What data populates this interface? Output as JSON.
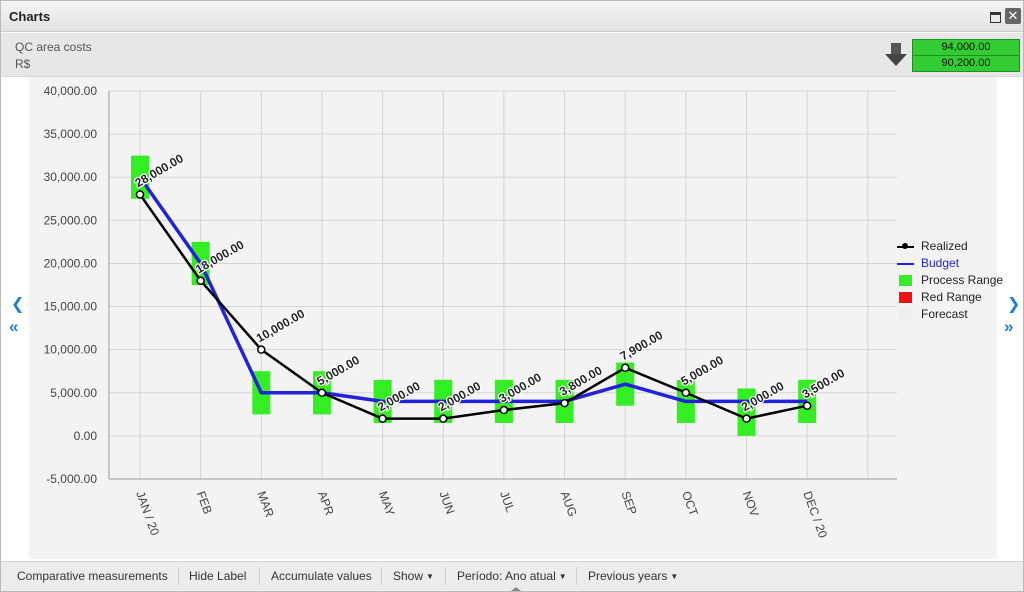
{
  "window": {
    "title": "Charts",
    "close_glyph": "✕"
  },
  "header": {
    "title": "QC area costs",
    "unit": "R$",
    "trend_icon": "arrow-down-icon",
    "values": [
      "94,000.00",
      "90,200.00"
    ],
    "value_color": "#33cc33"
  },
  "nav": {
    "left": "❮",
    "left_fast": "«",
    "right": "❯",
    "right_fast": "»"
  },
  "legend": {
    "realized": "Realized",
    "budget": "Budget",
    "process_range": "Process Range",
    "red_range": "Red Range",
    "forecast": "Forecast"
  },
  "toolbar": {
    "comparative": "Comparative measurements",
    "hide_label": "Hide Label",
    "accumulate": "Accumulate values",
    "show": "Show",
    "periodo": "Período: Ano atual",
    "previous": "Previous years",
    "caret": "▼"
  },
  "chart_data": {
    "type": "line",
    "categories": [
      "JAN / 20",
      "FEB",
      "MAR",
      "APR",
      "MAY",
      "JUN",
      "JUL",
      "AUG",
      "SEP",
      "OCT",
      "NOV",
      "DEC / 20"
    ],
    "ylim": [
      -5000,
      40000
    ],
    "yticks": [
      -5000,
      0,
      5000,
      10000,
      15000,
      20000,
      25000,
      30000,
      35000,
      40000
    ],
    "ytick_labels": [
      "-5,000.00",
      "0.00",
      "5,000.00",
      "10,000.00",
      "15,000.00",
      "20,000.00",
      "25,000.00",
      "30,000.00",
      "35,000.00",
      "40,000.00"
    ],
    "grid": true,
    "legend_position": "right",
    "series": [
      {
        "name": "Realized",
        "color": "#000000",
        "values": [
          28000,
          18000,
          10000,
          5000,
          2000,
          2000,
          3000,
          3800,
          7900,
          5000,
          2000,
          3500
        ],
        "labels": [
          "28,000.00",
          "18,000.00",
          "10,000.00",
          "5,000.00",
          "2,000.00",
          "2,000.00",
          "3,000.00",
          "3,800.00",
          "7,900.00",
          "5,000.00",
          "2,000.00",
          "3,500.00"
        ]
      },
      {
        "name": "Budget",
        "color": "#2222dd",
        "values": [
          30000,
          20000,
          5000,
          5000,
          4000,
          4000,
          4000,
          4000,
          6000,
          4000,
          4000,
          4000
        ]
      }
    ],
    "process_range": {
      "name": "Process Range",
      "color": "#33ee22",
      "low": [
        27500,
        17500,
        2500,
        2500,
        1500,
        1500,
        1500,
        1500,
        3500,
        1500,
        0,
        1500
      ],
      "high": [
        32500,
        22500,
        7500,
        7500,
        6500,
        6500,
        6500,
        6500,
        8500,
        6500,
        5500,
        6500
      ]
    },
    "red_range": {
      "name": "Red Range",
      "color": "#ee1111"
    },
    "forecast": {
      "name": "Forecast",
      "color": "#eeeeee"
    }
  }
}
